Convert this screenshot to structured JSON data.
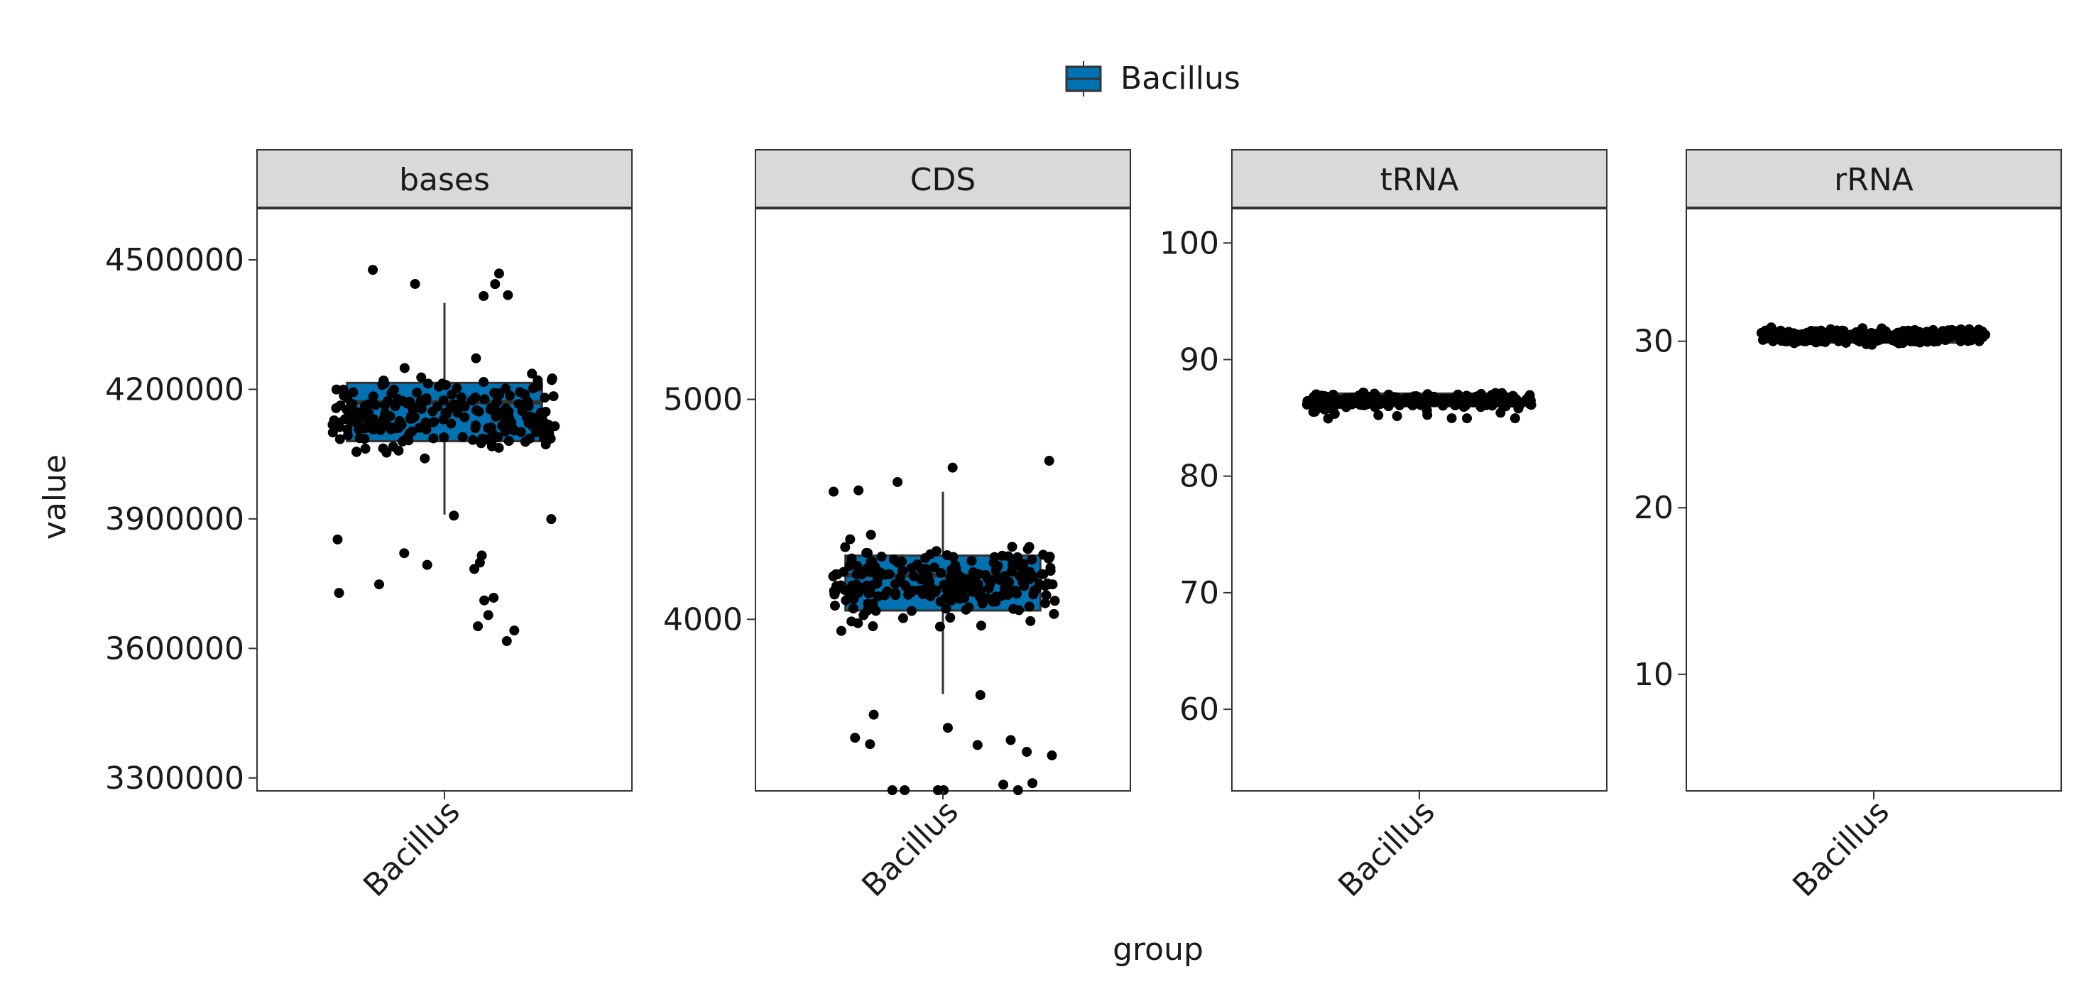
{
  "legend": {
    "label": "Bacillus",
    "color": "#0072b2",
    "position": "top"
  },
  "chart_data": {
    "type": "box",
    "xlabel": "group",
    "ylabel": "value",
    "group": "Bacillus",
    "fill_color": "#0072b2",
    "points_shown": true,
    "panels": [
      {
        "name": "bases",
        "ylim": [
          3270000,
          4620000
        ],
        "ticks": [
          {
            "value": 3300000,
            "label": "3300000"
          },
          {
            "value": 3600000,
            "label": "3600000"
          },
          {
            "value": 3900000,
            "label": "3900000"
          },
          {
            "value": 4200000,
            "label": "4200000"
          },
          {
            "value": 4500000,
            "label": "4500000"
          }
        ],
        "box": {
          "lower_whisker": 3910000,
          "q1": 4080000,
          "median": 4170000,
          "q3": 4215000,
          "upper_whisker": 4400000
        }
      },
      {
        "name": "CDS",
        "ylim": [
          3220000,
          5870000
        ],
        "ticks": [
          {
            "value": 4000,
            "label": "4000"
          },
          {
            "value": 5000,
            "label": "5000"
          }
        ],
        "box": {
          "lower_whisker": 3660,
          "q1": 4040,
          "median": 4200,
          "q3": 4290,
          "upper_whisker": 4580
        }
      },
      {
        "name": "tRNA",
        "ylim": [
          53,
          103
        ],
        "ticks": [
          {
            "value": 60,
            "label": "60"
          },
          {
            "value": 70,
            "label": "70"
          },
          {
            "value": 80,
            "label": "80"
          },
          {
            "value": 90,
            "label": "90"
          },
          {
            "value": 100,
            "label": "100"
          }
        ],
        "box": {
          "lower_whisker": 86,
          "q1": 86,
          "median": 87,
          "q3": 87,
          "upper_whisker": 87
        }
      },
      {
        "name": "rRNA",
        "ylim": [
          3,
          38
        ],
        "ticks": [
          {
            "value": 10,
            "label": "10"
          },
          {
            "value": 20,
            "label": "20"
          },
          {
            "value": 30,
            "label": "30"
          }
        ],
        "box": {
          "lower_whisker": 30,
          "q1": 30,
          "median": 30,
          "q3": 30,
          "upper_whisker": 30
        }
      }
    ]
  }
}
